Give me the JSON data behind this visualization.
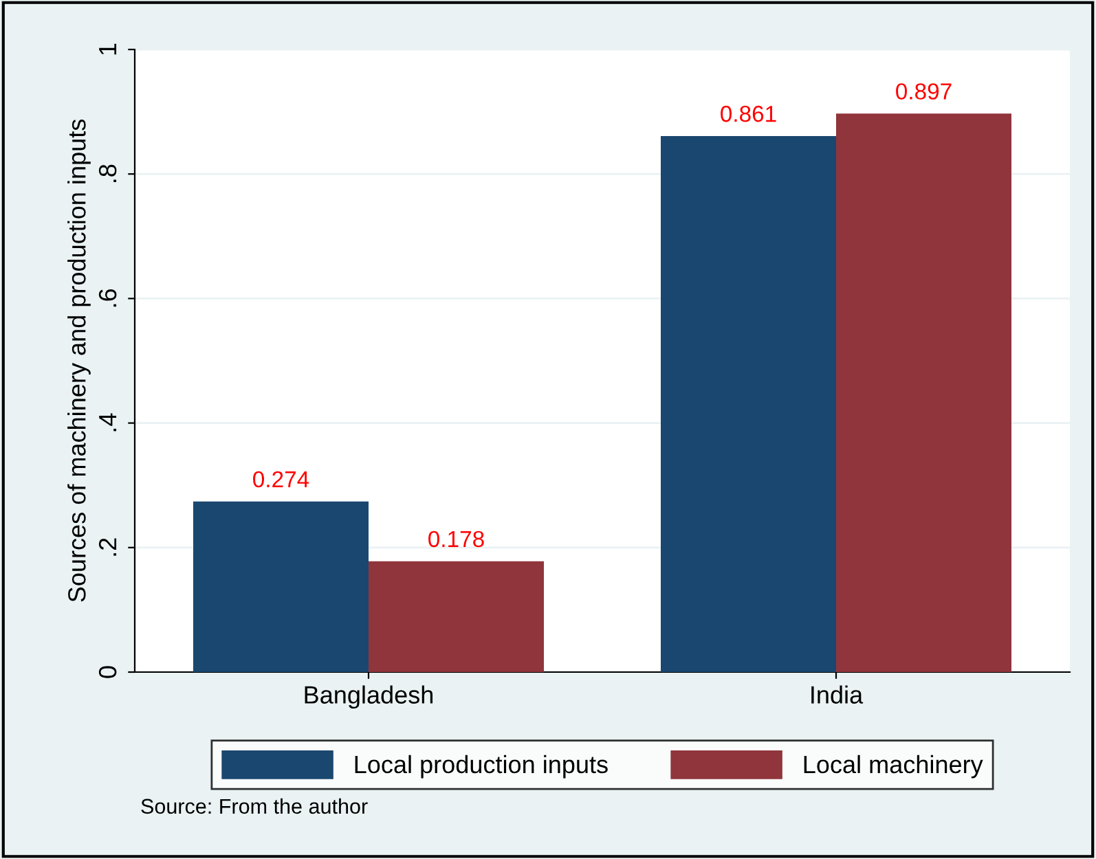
{
  "chart_data": {
    "type": "bar",
    "ylabel": "Sources of machinery and production inputs",
    "categories": [
      "Bangladesh",
      "India"
    ],
    "series": [
      {
        "name": "Local production inputs",
        "color": "#1a476f",
        "values": [
          0.274,
          0.861
        ]
      },
      {
        "name": "Local machinery",
        "color": "#90353b",
        "values": [
          0.178,
          0.897
        ]
      }
    ],
    "ylim": [
      0,
      1.0
    ],
    "yticks": [
      0,
      {
        "value": 0.2,
        "label": ".2"
      },
      {
        "value": 0.4,
        "label": ".4"
      },
      {
        "value": 0.6,
        "label": ".6"
      },
      {
        "value": 0.8,
        "label": ".8"
      },
      1
    ],
    "grid": "y",
    "legend": "bottom",
    "data_labels": true,
    "annotations": [
      "Source: From the author"
    ]
  }
}
